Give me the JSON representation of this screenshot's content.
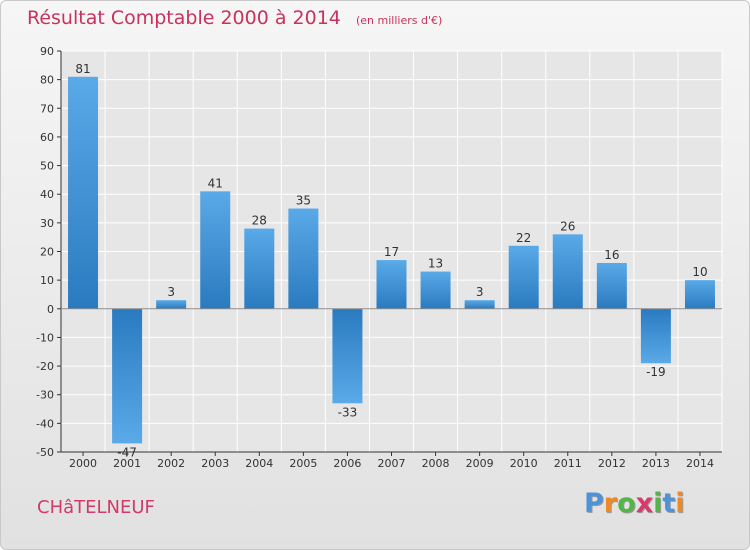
{
  "title": "Résultat Comptable 2000 à 2014",
  "subtitle": "(en milliers d'€)",
  "town": "CHâTELNEUF",
  "logo": {
    "text": "Proxiti",
    "letter_colors": [
      "#4e93d6",
      "#ec8a2a",
      "#55b447",
      "#d83b6b",
      "#55b447",
      "#4e93d6",
      "#ec8a2a"
    ]
  },
  "colors": {
    "bar_dark": "#2a7ac0",
    "bar_light": "#5aaae8",
    "grid": "#ffffff",
    "axis": "#333333",
    "text": "#333333",
    "accent": "#c8325c"
  },
  "chart_data": {
    "type": "bar",
    "title": "Résultat Comptable 2000 à 2014",
    "subtitle": "(en milliers d'€)",
    "xlabel": "",
    "ylabel": "",
    "categories": [
      "2000",
      "2001",
      "2002",
      "2003",
      "2004",
      "2005",
      "2006",
      "2007",
      "2008",
      "2009",
      "2010",
      "2011",
      "2012",
      "2013",
      "2014"
    ],
    "values": [
      81,
      -47,
      3,
      41,
      28,
      35,
      -33,
      17,
      13,
      3,
      22,
      26,
      16,
      -19,
      10
    ],
    "value_labels": [
      "81",
      "-47",
      "3",
      "41",
      "28",
      "35",
      "-33",
      "17",
      "13",
      "3",
      "22",
      "26",
      "16",
      "-19",
      "10"
    ],
    "ylim": [
      -50,
      90
    ],
    "yticks": [
      90,
      80,
      70,
      60,
      50,
      40,
      30,
      20,
      10,
      0,
      -10,
      -20,
      -30,
      -40,
      -50
    ],
    "ytick_labels": [
      "90",
      "80",
      "70",
      "60",
      "50",
      "40",
      "30",
      "20",
      "10",
      "0",
      "-10",
      "-20",
      "-30",
      "-40",
      "-50"
    ],
    "grid": true,
    "legend": "none"
  }
}
